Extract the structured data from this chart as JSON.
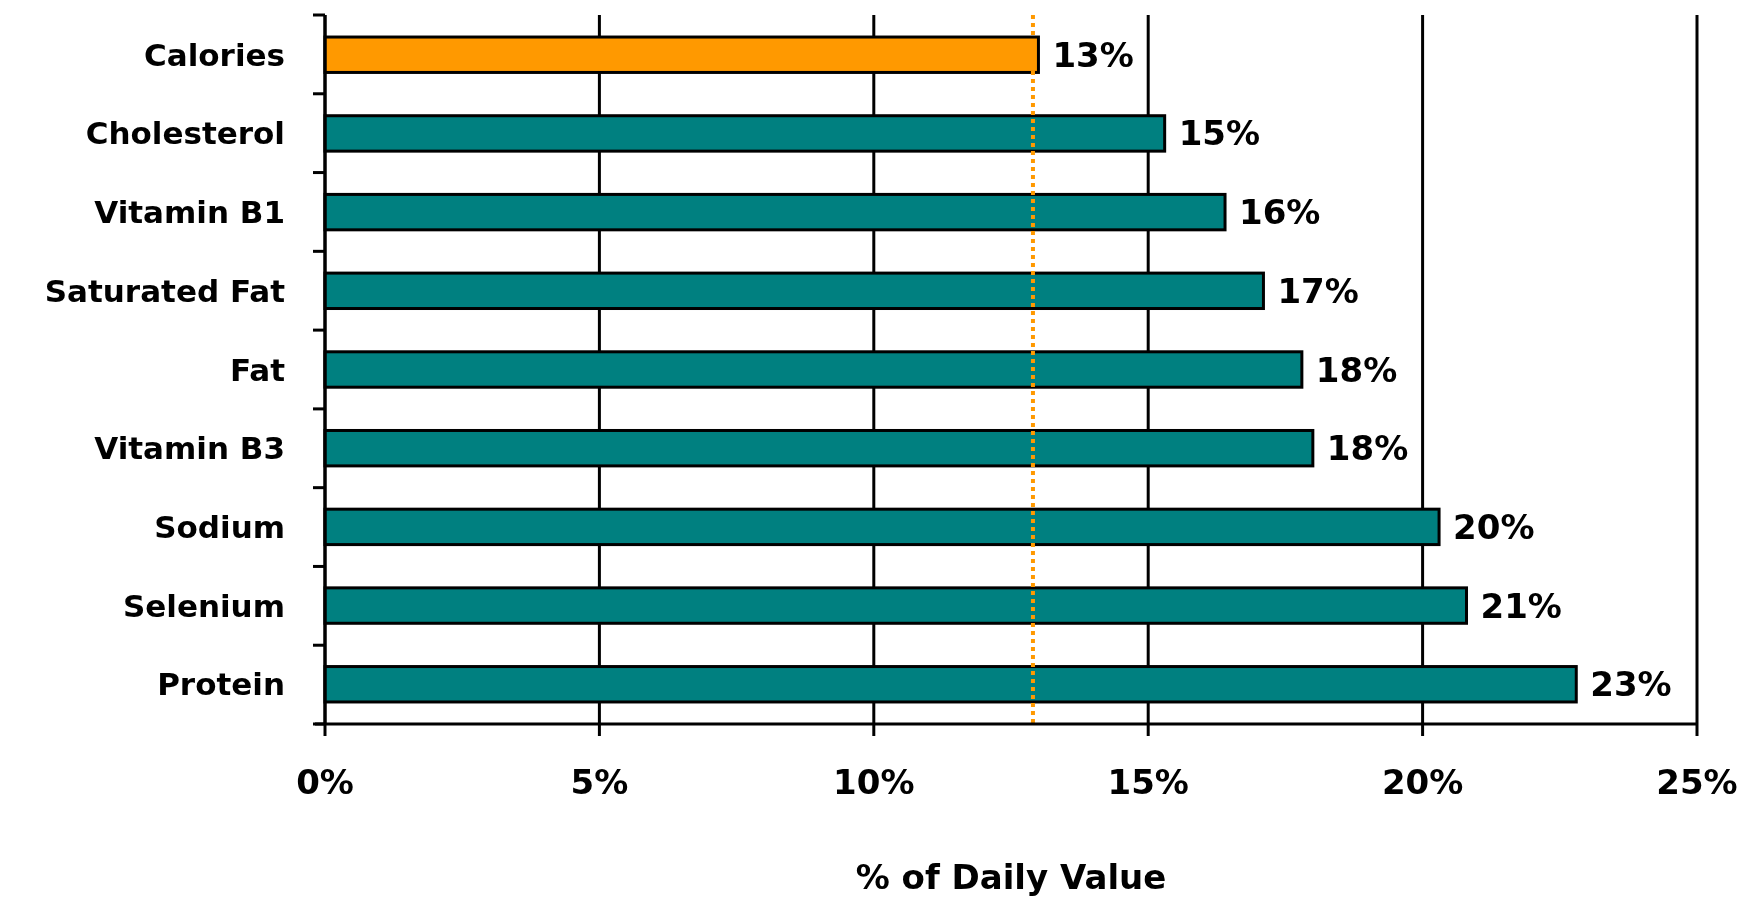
{
  "chart_data": {
    "type": "bar",
    "orientation": "horizontal",
    "xlabel": "% of Daily Value",
    "categories": [
      "Calories",
      "Cholesterol",
      "Vitamin B1",
      "Saturated Fat",
      "Fat",
      "Vitamin B3",
      "Sodium",
      "Selenium",
      "Protein"
    ],
    "values": [
      13.0,
      15.3,
      16.4,
      17.1,
      17.8,
      18.0,
      20.3,
      20.8,
      22.8
    ],
    "colors": [
      "#ff9900",
      "#008080",
      "#008080",
      "#008080",
      "#008080",
      "#008080",
      "#008080",
      "#008080",
      "#008080"
    ],
    "value_labels": [
      "13%",
      "15%",
      "16%",
      "17%",
      "18%",
      "18%",
      "20%",
      "21%",
      "23%"
    ],
    "xlim": [
      0,
      25
    ],
    "xticks": [
      {
        "value": 0,
        "label": "0%"
      },
      {
        "value": 5,
        "label": "5%"
      },
      {
        "value": 10,
        "label": "10%"
      },
      {
        "value": 15,
        "label": "15%"
      },
      {
        "value": 20,
        "label": "20%"
      },
      {
        "value": 25,
        "label": "25%"
      }
    ],
    "grid": "x",
    "ref_lines": [
      {
        "axis": "x",
        "value": 12.9,
        "color": "#ff9900",
        "line_style": "dotted"
      }
    ]
  }
}
